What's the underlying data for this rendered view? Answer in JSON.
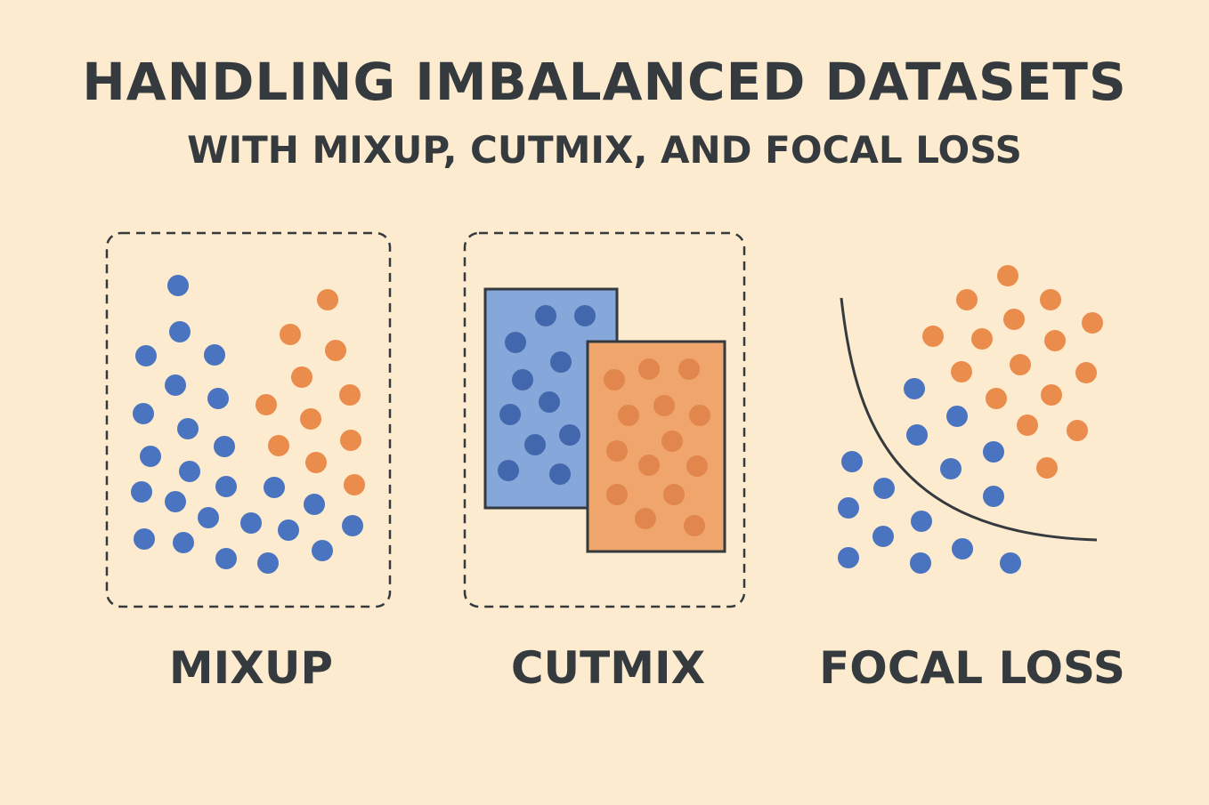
{
  "header": {
    "title": "HANDLING IMBALANCED DATASETS",
    "subtitle": "WITH MIXUP, CUTMIX, AND FOCAL LOSS"
  },
  "panels": [
    {
      "label": "MIXUP"
    },
    {
      "label": "CUTMIX"
    },
    {
      "label": "FOCAL LOSS"
    }
  ],
  "colors": {
    "background": "#fdebd0",
    "text": "#343a3d",
    "blue_dot": "#4a74c0",
    "orange_dot": "#ea8c4c",
    "blue_patch": "#86a7d9",
    "blue_patch_dot": "#4367ad",
    "orange_patch": "#f0a56c",
    "orange_patch_dot": "#e1864c"
  }
}
